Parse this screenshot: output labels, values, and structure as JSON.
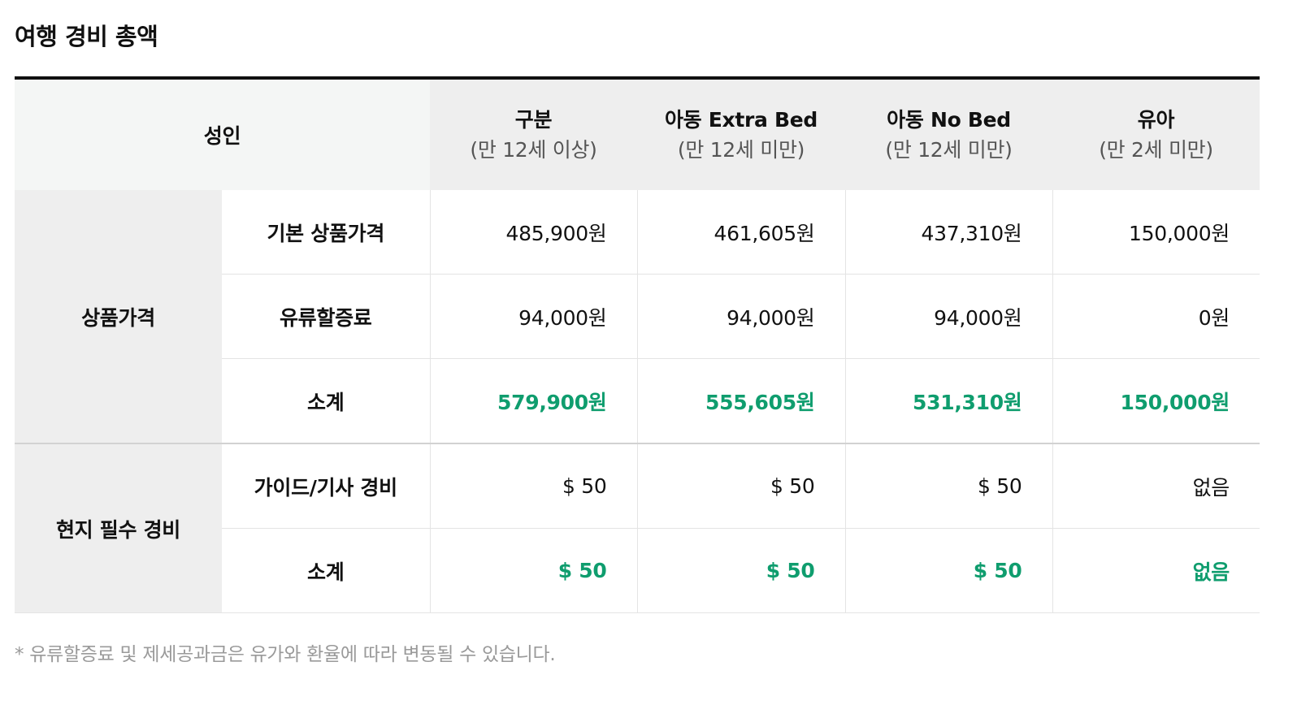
{
  "title": "여행 경비 총액",
  "header": {
    "adult": "성인",
    "columns": [
      {
        "label": "구분",
        "sub": "(만 12세 이상)"
      },
      {
        "label": "아동 Extra Bed",
        "sub": "(만 12세 미만)"
      },
      {
        "label": "아동 No Bed",
        "sub": "(만 12세 미만)"
      },
      {
        "label": "유아",
        "sub": "(만 2세 미만)"
      }
    ]
  },
  "groups": {
    "product": {
      "label": "상품가격",
      "rows": [
        {
          "label": "기본 상품가격",
          "values": [
            "485,900원",
            "461,605원",
            "437,310원",
            "150,000원"
          ]
        },
        {
          "label": "유류할증료",
          "values": [
            "94,000원",
            "94,000원",
            "94,000원",
            "0원"
          ]
        },
        {
          "label": "소계",
          "values": [
            "579,900원",
            "555,605원",
            "531,310원",
            "150,000원"
          ]
        }
      ]
    },
    "local": {
      "label": "현지 필수 경비",
      "rows": [
        {
          "label": "가이드/기사 경비",
          "values": [
            "$ 50",
            "$ 50",
            "$ 50",
            "없음"
          ]
        },
        {
          "label": "소계",
          "values": [
            "$ 50",
            "$ 50",
            "$ 50",
            "없음"
          ]
        }
      ]
    }
  },
  "note": "*  유류할증료 및 제세공과금은 유가와 환율에 따라 변동될 수 있습니다.",
  "colors": {
    "accent_green": "#0f9d6e",
    "header_bg": "#eeeeee",
    "adult_header_bg": "#f4f6f5",
    "note_gray": "#9a9a9a"
  }
}
